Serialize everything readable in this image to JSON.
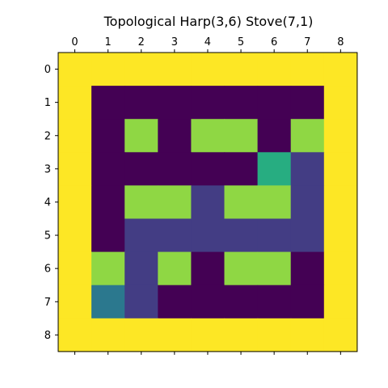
{
  "chart_data": {
    "type": "heatmap",
    "title": "Topological Harp(3,6) Stove(7,1)",
    "xlabel": "",
    "ylabel": "",
    "x_ticks": [
      "0",
      "1",
      "2",
      "3",
      "4",
      "5",
      "6",
      "7",
      "8"
    ],
    "y_ticks": [
      "0",
      "1",
      "2",
      "3",
      "4",
      "5",
      "6",
      "7",
      "8"
    ],
    "x_axis_position": "top",
    "grid": false,
    "colormap": "viridis",
    "value_range": [
      0,
      5
    ],
    "matrix": [
      [
        5,
        5,
        5,
        5,
        5,
        5,
        5,
        5,
        5
      ],
      [
        5,
        0,
        0,
        0,
        0,
        0,
        0,
        0,
        5
      ],
      [
        5,
        0,
        4,
        0,
        4,
        4,
        0,
        4,
        5
      ],
      [
        5,
        0,
        0,
        0,
        0,
        0,
        3,
        1,
        5
      ],
      [
        5,
        0,
        4,
        4,
        1,
        4,
        4,
        1,
        5
      ],
      [
        5,
        0,
        1,
        1,
        1,
        1,
        1,
        1,
        5
      ],
      [
        5,
        4,
        1,
        4,
        0,
        4,
        4,
        0,
        5
      ],
      [
        5,
        2,
        1,
        0,
        0,
        0,
        0,
        0,
        5
      ],
      [
        5,
        5,
        5,
        5,
        5,
        5,
        5,
        5,
        5
      ]
    ],
    "color_map": {
      "0": "#440154",
      "1": "#433d84",
      "2": "#2b788e",
      "3": "#27ad81",
      "4": "#8fd744",
      "5": "#fde725"
    }
  }
}
